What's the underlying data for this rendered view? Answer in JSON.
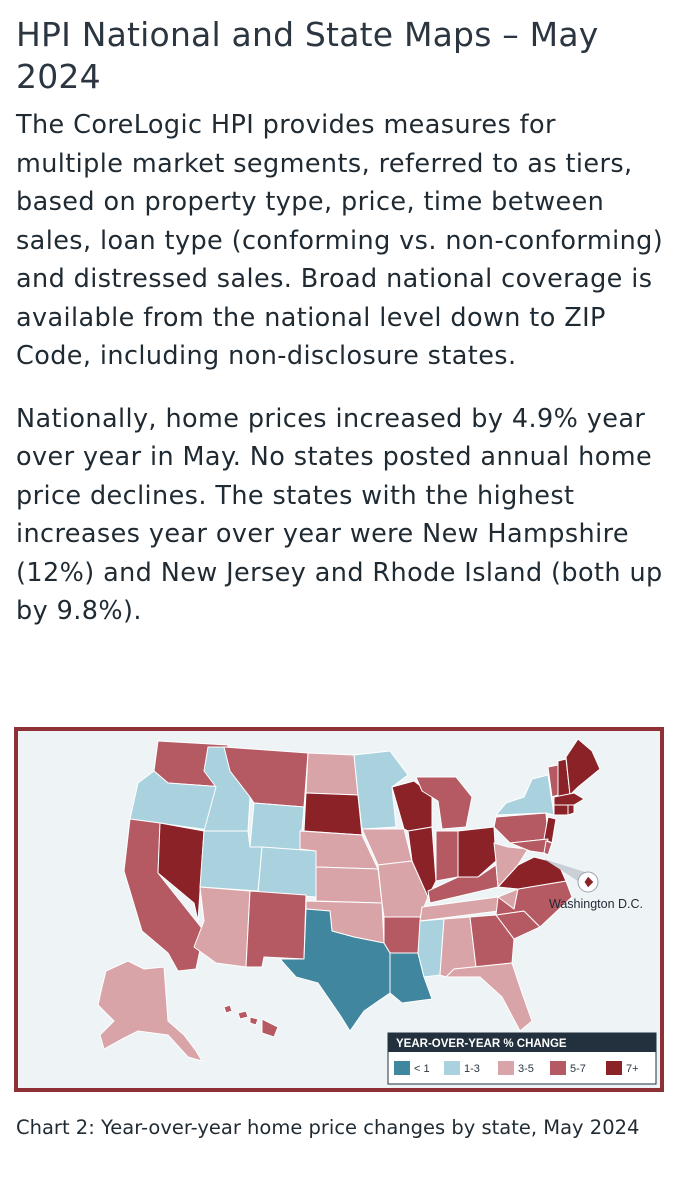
{
  "article": {
    "title": "HPI National and State Maps – May 2024",
    "paragraph1": "The CoreLogic HPI provides measures for multiple market segments, referred to as tiers, based on property type, price, time between sales, loan type (conforming vs. non-conforming) and distressed sales. Broad national coverage is available from the national level down to ZIP Code, including non-disclosure states.",
    "paragraph2": "Nationally, home prices increased by 4.9% year over year in  May. No states posted annual home price declines. The states with the highest increases year over year were New Hampshire (12%) and New Jersey and Rhode Island (both up by 9.8%).",
    "caption": "Chart 2: Year-over-year home price changes by state, May 2024"
  },
  "map": {
    "callout_label": "Washington D.C.",
    "legend": {
      "title": "YEAR-OVER-YEAR % CHANGE",
      "items": [
        {
          "label": "< 1",
          "color": "#3f869e"
        },
        {
          "label": "1-3",
          "color": "#a9d2de"
        },
        {
          "label": "3-5",
          "color": "#d9a4a8"
        },
        {
          "label": "5-7",
          "color": "#b55a63"
        },
        {
          "label": "7+",
          "color": "#8b2228"
        }
      ]
    },
    "state_colors": {
      "WA": "#b55a63",
      "OR": "#a9d2de",
      "CA": "#b55a63",
      "NV": "#8b2228",
      "ID": "#a9d2de",
      "MT": "#b55a63",
      "WY": "#a9d2de",
      "UT": "#a9d2de",
      "AZ": "#d9a4a8",
      "CO": "#a9d2de",
      "NM": "#b55a63",
      "TX": "#3f869e",
      "ND": "#d9a4a8",
      "SD": "#8b2228",
      "NE": "#d9a4a8",
      "KS": "#d9a4a8",
      "OK": "#d9a4a8",
      "MN": "#a9d2de",
      "IA": "#d9a4a8",
      "MO": "#d9a4a8",
      "AR": "#b55a63",
      "LA": "#3f869e",
      "WI": "#8b2228",
      "IL": "#8b2228",
      "MI": "#b55a63",
      "IN": "#b55a63",
      "OH": "#8b2228",
      "KY": "#b55a63",
      "TN": "#d9a4a8",
      "MS": "#a9d2de",
      "AL": "#d9a4a8",
      "GA": "#b55a63",
      "FL": "#d9a4a8",
      "SC": "#b55a63",
      "NC": "#b55a63",
      "VA": "#8b2228",
      "WV": "#d9a4a8",
      "PA": "#b55a63",
      "NY": "#a9d2de",
      "VT": "#b55a63",
      "NH": "#8b2228",
      "ME": "#8b2228",
      "MA": "#8b2228",
      "CT": "#8b2228",
      "RI": "#8b2228",
      "NJ": "#8b2228",
      "DE": "#b55a63",
      "MD": "#b55a63",
      "AK": "#d9a4a8",
      "HI": "#b55a63",
      "DC": "#8b2228"
    }
  }
}
